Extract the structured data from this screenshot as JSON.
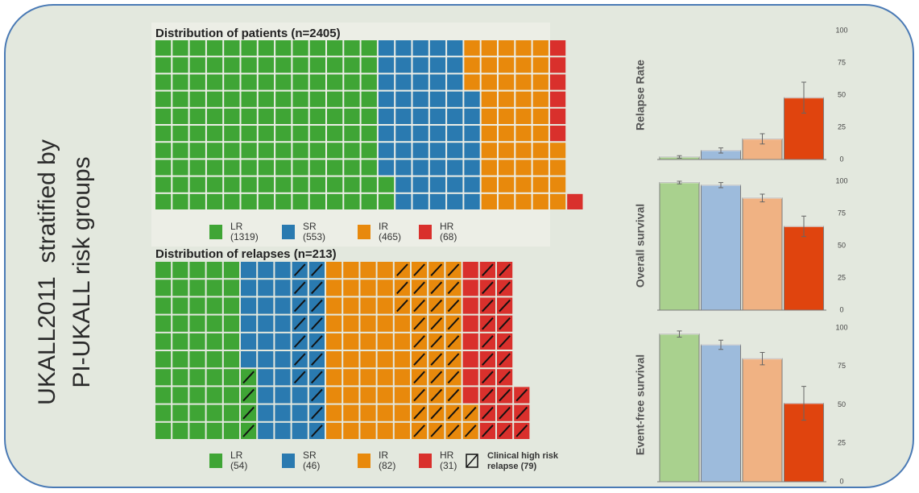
{
  "side_title": [
    "UKALL2011  stratified by",
    "PI-UKALL risk groups"
  ],
  "chart_data": [
    {
      "type": "waffle",
      "title": "Distribution of patients (n=2405)",
      "categories": [
        "LR",
        "SR",
        "IR",
        "HR"
      ],
      "values": [
        1319,
        553,
        465,
        68
      ],
      "value_labels": [
        "(1319)",
        "(553)",
        "(465)",
        "(68)"
      ],
      "colors": [
        "#3fa535",
        "#2a7ab0",
        "#e8890c",
        "#d9302c"
      ]
    },
    {
      "type": "waffle",
      "title": "Distribution of relapses (n=213)",
      "categories": [
        "LR",
        "SR",
        "IR",
        "HR"
      ],
      "values": [
        54,
        46,
        82,
        31
      ],
      "value_labels": [
        "(54)",
        "(46)",
        "(82)",
        "(31)"
      ],
      "colors": [
        "#3fa535",
        "#2a7ab0",
        "#e8890c",
        "#d9302c"
      ],
      "hatched": {
        "label": [
          "Clinical high risk",
          "relapse (79)"
        ],
        "value": 79,
        "values": [
          4,
          17,
          35,
          23
        ]
      }
    },
    {
      "type": "bar",
      "y_label": "Relapse Rate",
      "values": [
        2,
        7,
        16,
        48
      ],
      "errors": [
        1,
        2,
        4,
        12
      ],
      "colors": [
        "#a9d18e",
        "#9dbbdc",
        "#f0b283",
        "#e0440e"
      ],
      "ylim": [
        0,
        100
      ],
      "yticks": [
        0,
        25,
        50,
        75,
        100
      ]
    },
    {
      "type": "bar",
      "y_label": "Overall survival",
      "values": [
        99,
        97,
        87,
        65
      ],
      "errors": [
        1,
        2,
        3,
        8
      ],
      "colors": [
        "#a9d18e",
        "#9dbbdc",
        "#f0b283",
        "#e0440e"
      ],
      "ylim": [
        0,
        100
      ],
      "yticks": [
        0,
        25,
        50,
        75,
        100
      ]
    },
    {
      "type": "bar",
      "y_label": "Event-free survival",
      "values": [
        96,
        89,
        80,
        51
      ],
      "errors": [
        2,
        3,
        4,
        11
      ],
      "colors": [
        "#a9d18e",
        "#9dbbdc",
        "#f0b283",
        "#e0440e"
      ],
      "ylim": [
        0,
        100
      ],
      "yticks": [
        0,
        25,
        50,
        75,
        100
      ]
    }
  ]
}
